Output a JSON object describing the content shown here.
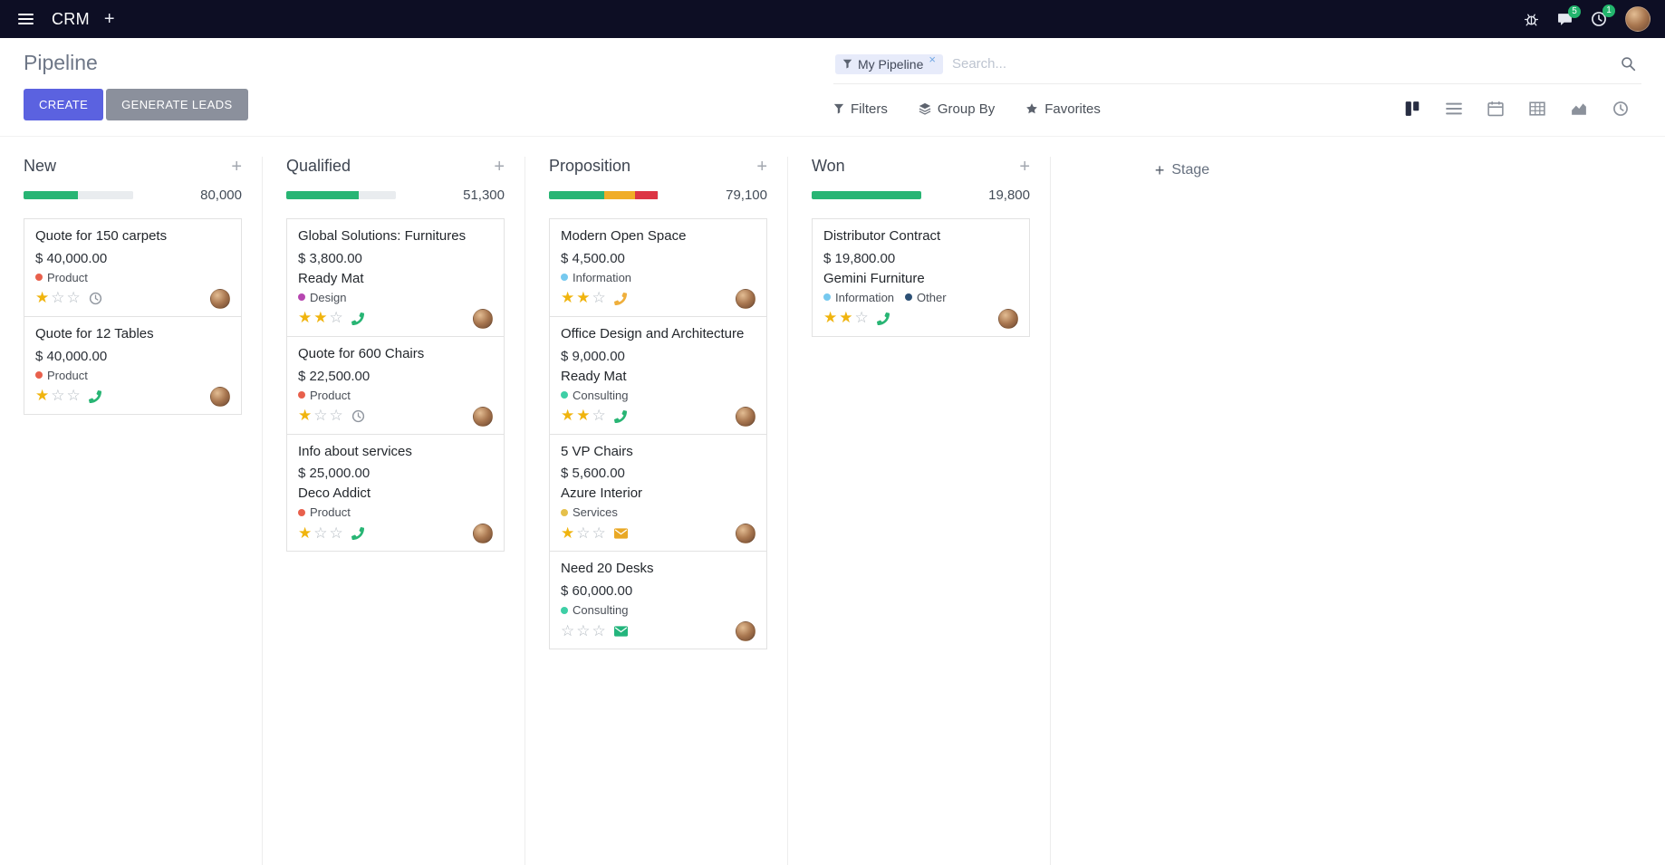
{
  "icons": {
    "plus": "+",
    "close": "×",
    "star_filled": "★",
    "star_empty": "☆"
  },
  "colors": {
    "accent": "#5b62e0",
    "success": "#28b574",
    "warning": "#f0ad27",
    "danger": "#dc3545",
    "navbar": "#0d0e24"
  },
  "navbar": {
    "app_name": "CRM",
    "message_badge": "5",
    "activity_badge": "1"
  },
  "control_panel": {
    "title": "Pipeline",
    "create_label": "CREATE",
    "generate_leads_label": "GENERATE LEADS",
    "facet_label": "My Pipeline",
    "search_placeholder": "Search...",
    "filters_label": "Filters",
    "group_by_label": "Group By",
    "favorites_label": "Favorites"
  },
  "view_switcher": [
    "kanban",
    "list",
    "calendar",
    "pivot",
    "graph",
    "activity"
  ],
  "kanban": {
    "add_stage_label": "Stage",
    "columns": [
      {
        "name": "New",
        "total": "80,000",
        "progress": [
          {
            "color": "#28b574",
            "pct": 50
          },
          {
            "color": "#e9ecef",
            "pct": 50
          }
        ],
        "cards": [
          {
            "title": "Quote for 150 carpets",
            "amount": "$ 40,000.00",
            "tags": [
              {
                "label": "Product",
                "color": "#e8604c"
              }
            ],
            "stars": 1,
            "activity": {
              "icon": "clock",
              "color": "#8f959e"
            }
          },
          {
            "title": "Quote for 12 Tables",
            "amount": "$ 40,000.00",
            "tags": [
              {
                "label": "Product",
                "color": "#e8604c"
              }
            ],
            "stars": 1,
            "activity": {
              "icon": "phone",
              "color": "#28b574"
            }
          }
        ]
      },
      {
        "name": "Qualified",
        "total": "51,300",
        "progress": [
          {
            "color": "#28b574",
            "pct": 66
          },
          {
            "color": "#e9ecef",
            "pct": 34
          }
        ],
        "cards": [
          {
            "title": "Global Solutions: Furnitures",
            "amount": "$ 3,800.00",
            "partner": "Ready Mat",
            "tags": [
              {
                "label": "Design",
                "color": "#b646b0"
              }
            ],
            "stars": 2,
            "activity": {
              "icon": "phone",
              "color": "#28b574"
            }
          },
          {
            "title": "Quote for 600 Chairs",
            "amount": "$ 22,500.00",
            "tags": [
              {
                "label": "Product",
                "color": "#e8604c"
              }
            ],
            "stars": 1,
            "activity": {
              "icon": "clock",
              "color": "#8f959e"
            }
          },
          {
            "title": "Info about services",
            "amount": "$ 25,000.00",
            "partner": "Deco Addict",
            "tags": [
              {
                "label": "Product",
                "color": "#e8604c"
              }
            ],
            "stars": 1,
            "activity": {
              "icon": "phone",
              "color": "#28b574"
            }
          }
        ]
      },
      {
        "name": "Proposition",
        "total": "79,100",
        "progress": [
          {
            "color": "#28b574",
            "pct": 51
          },
          {
            "color": "#f0ad27",
            "pct": 28
          },
          {
            "color": "#dc3545",
            "pct": 21
          }
        ],
        "cards": [
          {
            "title": "Modern Open Space",
            "amount": "$ 4,500.00",
            "tags": [
              {
                "label": "Information",
                "color": "#76c9ef"
              }
            ],
            "stars": 2,
            "activity": {
              "icon": "phone",
              "color": "#efaf3c"
            }
          },
          {
            "title": "Office Design and Architecture",
            "amount": "$ 9,000.00",
            "partner": "Ready Mat",
            "tags": [
              {
                "label": "Consulting",
                "color": "#3ecfa6"
              }
            ],
            "stars": 2,
            "activity": {
              "icon": "phone",
              "color": "#28b574"
            }
          },
          {
            "title": "5 VP Chairs",
            "amount": "$ 5,600.00",
            "partner": "Azure Interior",
            "tags": [
              {
                "label": "Services",
                "color": "#e5c04b"
              }
            ],
            "stars": 1,
            "activity": {
              "icon": "envelope",
              "color": "#e9a825"
            }
          },
          {
            "title": "Need 20 Desks",
            "amount": "$ 60,000.00",
            "tags": [
              {
                "label": "Consulting",
                "color": "#3ecfa6"
              }
            ],
            "stars": 0,
            "activity": {
              "icon": "envelope",
              "color": "#23b57c"
            }
          }
        ]
      },
      {
        "name": "Won",
        "total": "19,800",
        "progress": [
          {
            "color": "#28b574",
            "pct": 100
          }
        ],
        "cards": [
          {
            "title": "Distributor Contract",
            "amount": "$ 19,800.00",
            "partner": "Gemini Furniture",
            "tags": [
              {
                "label": "Information",
                "color": "#76c9ef"
              },
              {
                "label": "Other",
                "color": "#2c5075"
              }
            ],
            "stars": 2,
            "activity": {
              "icon": "phone",
              "color": "#28b574"
            }
          }
        ]
      }
    ]
  }
}
